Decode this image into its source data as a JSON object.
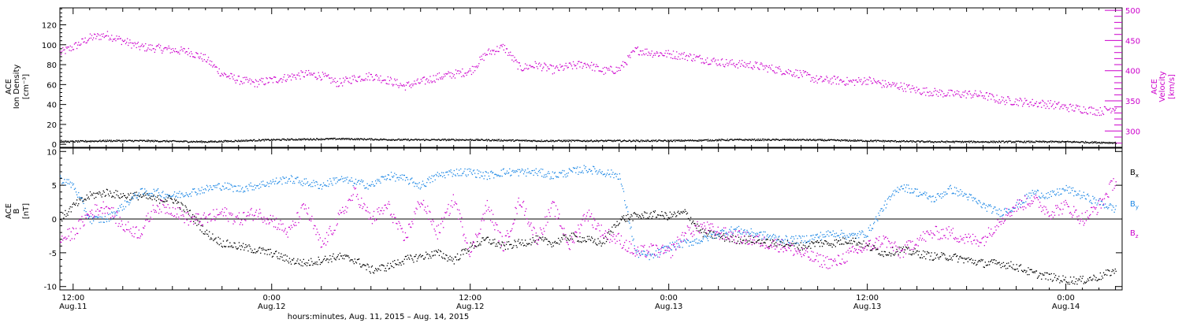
{
  "colors": {
    "axis": "#000000",
    "velocity": "#cc00cc",
    "density": "#000000",
    "bx": "#000000",
    "by": "#1e88e5",
    "bz": "#cc00cc"
  },
  "xaxis": {
    "title": "hours:minutes, Aug. 11, 2015 – Aug. 14, 2015",
    "range_hours": [
      -0.8,
      63.4
    ],
    "ticks": [
      {
        "h": 0,
        "time": "12:00",
        "date": "Aug.11"
      },
      {
        "h": 12,
        "time": "0:00",
        "date": "Aug.12"
      },
      {
        "h": 24,
        "time": "12:00",
        "date": "Aug.12"
      },
      {
        "h": 36,
        "time": "0:00",
        "date": "Aug.13"
      },
      {
        "h": 48,
        "time": "12:00",
        "date": "Aug.13"
      },
      {
        "h": 60,
        "time": "0:00",
        "date": "Aug.14"
      }
    ]
  },
  "panel1": {
    "ylabel_left": [
      "ACE",
      "Ion Density",
      "[cm⁻³]"
    ],
    "ylabel_right": [
      "ACE",
      "Velocity",
      "[km/s]"
    ],
    "left_range": [
      -3,
      137
    ],
    "left_ticks": [
      0,
      20,
      40,
      60,
      80,
      100,
      120
    ],
    "right_range": [
      273,
      504
    ],
    "right_ticks": [
      300,
      350,
      400,
      450,
      500
    ]
  },
  "panel2": {
    "ylabel_left": [
      "ACE",
      "B",
      "[nT]"
    ],
    "range": [
      -10.5,
      10.5
    ],
    "ticks": [
      -10,
      -5,
      0,
      5,
      10
    ],
    "legend": [
      "Bx",
      "By",
      "Bz"
    ]
  },
  "chart_data": [
    {
      "type": "scatter",
      "title": "",
      "xlabel": "hours:minutes, Aug. 11, 2015 – Aug. 14, 2015",
      "x_unit": "hours since Aug.11 12:00",
      "series": [
        {
          "name": "Ion Density",
          "axis": "left",
          "x": [
            -0.8,
            2,
            4,
            8,
            12,
            16,
            20,
            24,
            28,
            32,
            36,
            40,
            44,
            48,
            52,
            56,
            60,
            63
          ],
          "y": [
            3,
            4,
            4,
            3,
            5,
            6,
            5,
            5,
            4,
            4,
            4,
            5,
            5,
            4,
            3,
            3,
            3,
            2
          ]
        },
        {
          "name": "Velocity",
          "axis": "right",
          "x": [
            -0.8,
            0,
            1,
            2,
            3,
            4,
            5,
            6,
            7,
            8,
            9,
            10,
            11,
            12,
            13,
            14,
            15,
            16,
            17,
            18,
            19,
            20,
            21,
            22,
            23,
            24,
            25,
            26,
            27,
            28,
            29,
            30,
            31,
            32,
            33,
            34,
            35,
            36,
            37,
            38,
            39,
            40,
            41,
            42,
            43,
            44,
            45,
            46,
            47,
            48,
            49,
            50,
            51,
            52,
            53,
            54,
            55,
            56,
            57,
            58,
            59,
            60,
            61,
            62,
            63
          ],
          "y": [
            430,
            440,
            455,
            460,
            450,
            440,
            438,
            435,
            432,
            420,
            395,
            385,
            380,
            385,
            390,
            395,
            392,
            380,
            388,
            392,
            385,
            375,
            382,
            390,
            395,
            400,
            430,
            440,
            405,
            410,
            402,
            408,
            412,
            400,
            403,
            435,
            430,
            428,
            425,
            420,
            415,
            412,
            410,
            405,
            400,
            395,
            385,
            385,
            382,
            385,
            378,
            375,
            368,
            365,
            362,
            362,
            360,
            352,
            350,
            347,
            345,
            340,
            337,
            333,
            340
          ]
        }
      ]
    },
    {
      "type": "scatter",
      "title": "",
      "x_unit": "hours since Aug.11 12:00",
      "ylabel": "B [nT]",
      "series": [
        {
          "name": "Bx",
          "x": [
            -0.8,
            0,
            1,
            2,
            3,
            4,
            5,
            6,
            7,
            8,
            9,
            10,
            11,
            12,
            13,
            14,
            15,
            16,
            17,
            18,
            19,
            20,
            21,
            22,
            23,
            24,
            25,
            26,
            27,
            28,
            29,
            30,
            31,
            32,
            33,
            34,
            35,
            36,
            37,
            38,
            39,
            40,
            41,
            42,
            43,
            44,
            45,
            46,
            47,
            48,
            49,
            50,
            51,
            52,
            53,
            54,
            55,
            56,
            57,
            58,
            59,
            60,
            61,
            62,
            63
          ],
          "y": [
            0,
            2,
            3.5,
            4,
            3.5,
            3.5,
            3,
            3,
            1,
            -2,
            -3.5,
            -4,
            -4.5,
            -5,
            -6,
            -6.5,
            -6,
            -5.5,
            -6,
            -7.5,
            -7,
            -6,
            -5.5,
            -5,
            -6,
            -4,
            -3,
            -4,
            -3.5,
            -3,
            -3.5,
            -2.5,
            -3,
            -3.5,
            0,
            0.5,
            0.7,
            0.5,
            1,
            -2,
            -2.5,
            -3,
            -3,
            -3.5,
            -3.5,
            -4,
            -3.5,
            -3.5,
            -3,
            -4,
            -5,
            -4.5,
            -5,
            -5.5,
            -5.5,
            -6,
            -6.5,
            -6.5,
            -7,
            -8,
            -8.5,
            -9,
            -9,
            -8.5,
            -7.5
          ]
        },
        {
          "name": "By",
          "x": [
            -0.8,
            0,
            1,
            2,
            3,
            4,
            5,
            6,
            7,
            8,
            9,
            10,
            11,
            12,
            13,
            14,
            15,
            16,
            17,
            18,
            19,
            20,
            21,
            22,
            23,
            24,
            25,
            26,
            27,
            28,
            29,
            30,
            31,
            32,
            33,
            34,
            35,
            36,
            37,
            38,
            39,
            40,
            41,
            42,
            43,
            44,
            45,
            46,
            47,
            48,
            49,
            50,
            51,
            52,
            53,
            54,
            55,
            56,
            57,
            58,
            59,
            60,
            61,
            62,
            63
          ],
          "y": [
            6,
            5,
            0,
            0,
            2,
            4,
            4,
            3.5,
            4,
            4.5,
            5,
            4.5,
            5,
            5.5,
            6,
            5.5,
            5,
            6,
            5.5,
            5,
            6.5,
            6,
            5,
            6.5,
            7,
            7,
            6.5,
            7,
            7,
            7,
            6.5,
            7,
            7.5,
            7,
            6.5,
            -5,
            -5.5,
            -4,
            -3.5,
            -3,
            -2,
            -1.5,
            -2,
            -2.5,
            -3,
            -3,
            -2.5,
            -2,
            -2.5,
            -2,
            2,
            5,
            4,
            3,
            4.5,
            3.5,
            2,
            1,
            2,
            4,
            3.5,
            4.5,
            3.5,
            2.5,
            1.5
          ]
        },
        {
          "name": "Bz",
          "x": [
            -0.8,
            0,
            1,
            2,
            3,
            4,
            5,
            6,
            7,
            8,
            9,
            10,
            11,
            12,
            13,
            14,
            15,
            16,
            17,
            18,
            19,
            20,
            21,
            22,
            23,
            24,
            25,
            26,
            27,
            28,
            29,
            30,
            31,
            32,
            33,
            34,
            35,
            36,
            37,
            38,
            39,
            40,
            41,
            42,
            43,
            44,
            45,
            46,
            47,
            48,
            49,
            50,
            51,
            52,
            53,
            54,
            55,
            56,
            57,
            58,
            59,
            60,
            61,
            62,
            63
          ],
          "y": [
            -3,
            -2,
            1,
            2,
            -1,
            -2,
            2,
            1.5,
            0,
            0,
            1,
            0,
            1,
            0,
            -2,
            2,
            -4,
            0,
            4,
            0,
            2,
            -3,
            3,
            -2,
            3,
            -5,
            2,
            -4,
            3,
            -3,
            2,
            -4,
            1,
            -2,
            -3,
            -5,
            -4.5,
            -5,
            -2,
            -1,
            -2,
            -2.5,
            -3,
            -3.5,
            -4,
            -5,
            -6,
            -6.5,
            -5,
            -4,
            -3,
            -5,
            -3,
            -2,
            -2,
            -3,
            -3,
            0,
            2,
            3,
            1,
            2,
            0,
            2,
            6
          ]
        }
      ]
    }
  ]
}
